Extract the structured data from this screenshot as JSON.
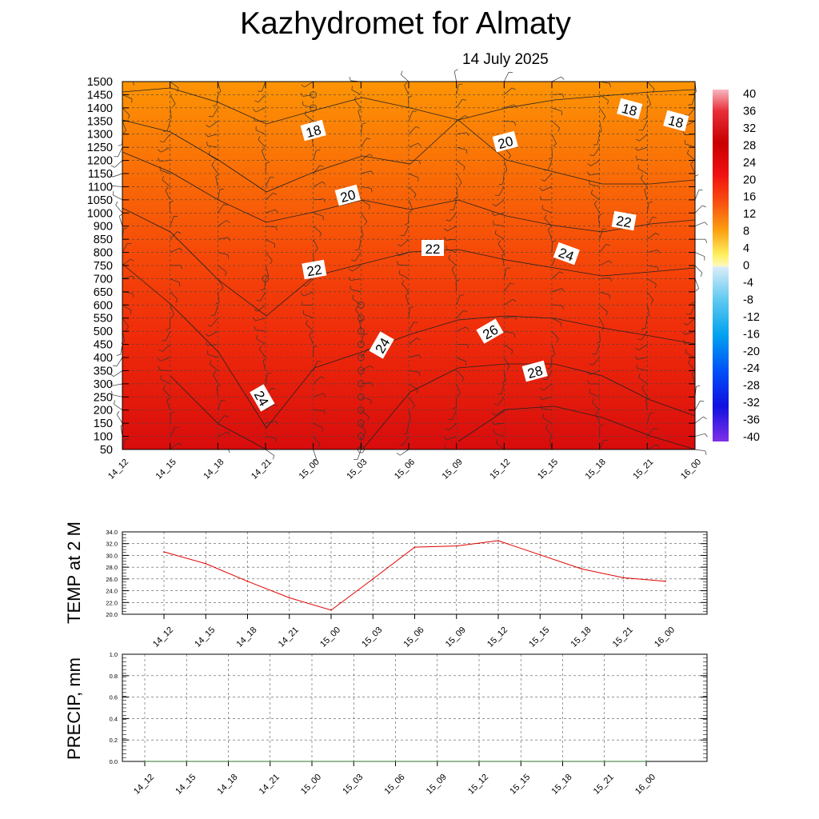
{
  "page": {
    "title": "Kazhydromet  for Almaty",
    "subtitle": "14 July 2025"
  },
  "times": [
    "14_12",
    "14_15",
    "14_18",
    "14_21",
    "15_00",
    "15_03",
    "15_06",
    "15_09",
    "15_12",
    "15_15",
    "15_18",
    "15_21",
    "16_00"
  ],
  "colors": {
    "line": "#000000",
    "temp_line": "#e00000",
    "precip_line": "#2a7a2a",
    "grid": "#555555"
  },
  "chart_data": [
    {
      "type": "heatmap",
      "name": "temperature-height-section",
      "x": [
        "14_12",
        "14_15",
        "14_18",
        "14_21",
        "15_00",
        "15_03",
        "15_06",
        "15_09",
        "15_12",
        "15_15",
        "15_18",
        "15_21",
        "16_00"
      ],
      "y_levels": [
        50,
        100,
        150,
        200,
        250,
        300,
        350,
        400,
        450,
        500,
        550,
        600,
        650,
        700,
        750,
        800,
        850,
        900,
        1000,
        1050,
        1100,
        1150,
        1200,
        1250,
        1300,
        1350,
        1400,
        1450,
        1500
      ],
      "y_ticks": [
        "1500",
        "1450",
        "1400",
        "1350",
        "1300",
        "1250",
        "1200",
        "1150",
        "1100",
        "1050",
        "1000",
        "900",
        "850",
        "800",
        "750",
        "700",
        "650",
        "600",
        "550",
        "500",
        "450",
        "400",
        "350",
        "300",
        "250",
        "200",
        "150",
        "100",
        "50"
      ],
      "contour_labels": [
        "18",
        "18",
        "18",
        "20",
        "20",
        "22",
        "22",
        "22",
        "24",
        "24",
        "24",
        "26",
        "28"
      ],
      "colorbar": {
        "ticks": [
          "40",
          "36",
          "32",
          "28",
          "24",
          "20",
          "16",
          "12",
          "8",
          "4",
          "0",
          "-4",
          "-8",
          "-12",
          "-16",
          "-20",
          "-24",
          "-28",
          "-32",
          "-36",
          "-40"
        ],
        "range": [
          -40,
          40
        ]
      }
    },
    {
      "type": "line",
      "name": "temp-2m",
      "ylabel": "TEMP at 2 M",
      "x": [
        "14_12",
        "14_15",
        "14_18",
        "14_21",
        "15_00",
        "15_03",
        "15_06",
        "15_09",
        "15_12",
        "15_15",
        "15_18",
        "15_21",
        "16_00"
      ],
      "ylim": [
        20,
        34
      ],
      "y_ticks": [
        "34.0",
        "32.0",
        "30.0",
        "28.0",
        "26.0",
        "24.0",
        "22.0",
        "20.0"
      ],
      "series": [
        {
          "values": [
            30.6,
            28.6,
            25.6,
            22.8,
            20.7,
            26.0,
            31.4,
            31.6,
            32.5,
            30.1,
            27.7,
            26.2,
            25.6
          ]
        }
      ]
    },
    {
      "type": "line",
      "name": "precip",
      "ylabel": "PRECIP, mm",
      "x": [
        "14_12",
        "14_15",
        "14_18",
        "14_21",
        "15_00",
        "15_03",
        "15_06",
        "15_09",
        "15_12",
        "15_15",
        "15_18",
        "15_21",
        "16_00"
      ],
      "ylim": [
        0,
        1
      ],
      "y_ticks": [
        "1.0",
        "0.8",
        "0.6",
        "0.4",
        "0.2",
        "0.0"
      ],
      "series": [
        {
          "values": [
            0,
            0,
            0,
            0,
            0,
            0,
            0,
            0,
            0,
            0,
            0,
            0,
            0
          ]
        }
      ]
    }
  ]
}
